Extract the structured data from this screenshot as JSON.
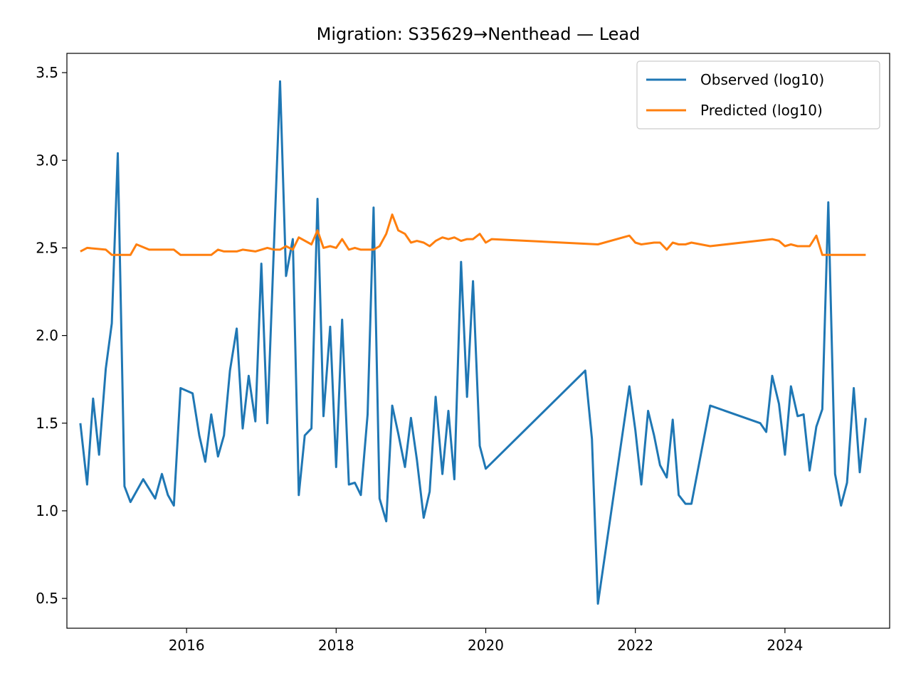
{
  "chart_data": {
    "type": "line",
    "title": "Migration: S35629→Nenthead — Lead",
    "xlabel": "",
    "ylabel": "",
    "xlim": [
      2014.4,
      2025.4
    ],
    "ylim": [
      0.33,
      3.61
    ],
    "x_ticks": [
      2016,
      2018,
      2020,
      2022,
      2024
    ],
    "x_tick_labels": [
      "2016",
      "2018",
      "2020",
      "2022",
      "2024"
    ],
    "y_ticks": [
      0.5,
      1.0,
      1.5,
      2.0,
      2.5,
      3.0,
      3.5
    ],
    "y_tick_labels": [
      "0.5",
      "1.0",
      "1.5",
      "2.0",
      "2.5",
      "3.0",
      "3.5"
    ],
    "grid": false,
    "legend_position": "top-right",
    "series": [
      {
        "name": "Observed (log10)",
        "color": "#1f77b4",
        "points": [
          [
            2014.58,
            1.5
          ],
          [
            2014.67,
            1.15
          ],
          [
            2014.75,
            1.64
          ],
          [
            2014.83,
            1.32
          ],
          [
            2014.92,
            1.81
          ],
          [
            2015.0,
            2.07
          ],
          [
            2015.08,
            3.04
          ],
          [
            2015.17,
            1.14
          ],
          [
            2015.25,
            1.05
          ],
          [
            2015.42,
            1.18
          ],
          [
            2015.58,
            1.07
          ],
          [
            2015.67,
            1.21
          ],
          [
            2015.75,
            1.09
          ],
          [
            2015.83,
            1.03
          ],
          [
            2015.92,
            1.7
          ],
          [
            2016.08,
            1.67
          ],
          [
            2016.17,
            1.43
          ],
          [
            2016.25,
            1.28
          ],
          [
            2016.33,
            1.55
          ],
          [
            2016.42,
            1.31
          ],
          [
            2016.5,
            1.43
          ],
          [
            2016.58,
            1.8
          ],
          [
            2016.67,
            2.04
          ],
          [
            2016.75,
            1.47
          ],
          [
            2016.83,
            1.77
          ],
          [
            2016.92,
            1.51
          ],
          [
            2017.0,
            2.41
          ],
          [
            2017.08,
            1.5
          ],
          [
            2017.25,
            3.45
          ],
          [
            2017.33,
            2.34
          ],
          [
            2017.42,
            2.55
          ],
          [
            2017.5,
            1.09
          ],
          [
            2017.58,
            1.43
          ],
          [
            2017.67,
            1.47
          ],
          [
            2017.75,
            2.78
          ],
          [
            2017.83,
            1.54
          ],
          [
            2017.92,
            2.05
          ],
          [
            2018.0,
            1.25
          ],
          [
            2018.08,
            2.09
          ],
          [
            2018.17,
            1.15
          ],
          [
            2018.25,
            1.16
          ],
          [
            2018.33,
            1.09
          ],
          [
            2018.42,
            1.55
          ],
          [
            2018.5,
            2.73
          ],
          [
            2018.58,
            1.07
          ],
          [
            2018.67,
            0.94
          ],
          [
            2018.75,
            1.6
          ],
          [
            2018.83,
            1.44
          ],
          [
            2018.92,
            1.25
          ],
          [
            2019.0,
            1.53
          ],
          [
            2019.08,
            1.29
          ],
          [
            2019.17,
            0.96
          ],
          [
            2019.25,
            1.11
          ],
          [
            2019.33,
            1.65
          ],
          [
            2019.42,
            1.21
          ],
          [
            2019.5,
            1.57
          ],
          [
            2019.58,
            1.18
          ],
          [
            2019.67,
            2.42
          ],
          [
            2019.75,
            1.65
          ],
          [
            2019.83,
            2.31
          ],
          [
            2019.92,
            1.37
          ],
          [
            2020.0,
            1.24
          ],
          [
            2021.33,
            1.8
          ],
          [
            2021.42,
            1.41
          ],
          [
            2021.5,
            0.47
          ],
          [
            2021.92,
            1.71
          ],
          [
            2022.0,
            1.46
          ],
          [
            2022.08,
            1.15
          ],
          [
            2022.17,
            1.57
          ],
          [
            2022.25,
            1.43
          ],
          [
            2022.33,
            1.26
          ],
          [
            2022.42,
            1.19
          ],
          [
            2022.5,
            1.52
          ],
          [
            2022.58,
            1.09
          ],
          [
            2022.67,
            1.04
          ],
          [
            2022.75,
            1.04
          ],
          [
            2023.0,
            1.6
          ],
          [
            2023.67,
            1.5
          ],
          [
            2023.75,
            1.45
          ],
          [
            2023.83,
            1.77
          ],
          [
            2023.92,
            1.61
          ],
          [
            2024.0,
            1.32
          ],
          [
            2024.08,
            1.71
          ],
          [
            2024.17,
            1.54
          ],
          [
            2024.25,
            1.55
          ],
          [
            2024.33,
            1.23
          ],
          [
            2024.42,
            1.48
          ],
          [
            2024.5,
            1.58
          ],
          [
            2024.58,
            2.76
          ],
          [
            2024.67,
            1.21
          ],
          [
            2024.75,
            1.03
          ],
          [
            2024.83,
            1.16
          ],
          [
            2024.92,
            1.7
          ],
          [
            2025.0,
            1.22
          ],
          [
            2025.08,
            1.53
          ]
        ]
      },
      {
        "name": "Predicted (log10)",
        "color": "#ff7f0e",
        "points": [
          [
            2014.58,
            2.48
          ],
          [
            2014.67,
            2.5
          ],
          [
            2014.92,
            2.49
          ],
          [
            2015.0,
            2.46
          ],
          [
            2015.17,
            2.46
          ],
          [
            2015.25,
            2.46
          ],
          [
            2015.33,
            2.52
          ],
          [
            2015.5,
            2.49
          ],
          [
            2015.83,
            2.49
          ],
          [
            2015.92,
            2.46
          ],
          [
            2016.33,
            2.46
          ],
          [
            2016.42,
            2.49
          ],
          [
            2016.5,
            2.48
          ],
          [
            2016.67,
            2.48
          ],
          [
            2016.75,
            2.49
          ],
          [
            2016.92,
            2.48
          ],
          [
            2017.0,
            2.49
          ],
          [
            2017.08,
            2.5
          ],
          [
            2017.17,
            2.49
          ],
          [
            2017.25,
            2.49
          ],
          [
            2017.33,
            2.51
          ],
          [
            2017.42,
            2.49
          ],
          [
            2017.5,
            2.56
          ],
          [
            2017.67,
            2.52
          ],
          [
            2017.75,
            2.6
          ],
          [
            2017.83,
            2.5
          ],
          [
            2017.92,
            2.51
          ],
          [
            2018.0,
            2.5
          ],
          [
            2018.08,
            2.55
          ],
          [
            2018.17,
            2.49
          ],
          [
            2018.25,
            2.5
          ],
          [
            2018.33,
            2.49
          ],
          [
            2018.42,
            2.49
          ],
          [
            2018.5,
            2.49
          ],
          [
            2018.58,
            2.51
          ],
          [
            2018.67,
            2.58
          ],
          [
            2018.75,
            2.69
          ],
          [
            2018.83,
            2.6
          ],
          [
            2018.92,
            2.58
          ],
          [
            2019.0,
            2.53
          ],
          [
            2019.08,
            2.54
          ],
          [
            2019.17,
            2.53
          ],
          [
            2019.25,
            2.51
          ],
          [
            2019.33,
            2.54
          ],
          [
            2019.42,
            2.56
          ],
          [
            2019.5,
            2.55
          ],
          [
            2019.58,
            2.56
          ],
          [
            2019.67,
            2.54
          ],
          [
            2019.75,
            2.55
          ],
          [
            2019.83,
            2.55
          ],
          [
            2019.92,
            2.58
          ],
          [
            2020.0,
            2.53
          ],
          [
            2020.08,
            2.55
          ],
          [
            2021.5,
            2.52
          ],
          [
            2021.92,
            2.57
          ],
          [
            2022.0,
            2.53
          ],
          [
            2022.08,
            2.52
          ],
          [
            2022.25,
            2.53
          ],
          [
            2022.33,
            2.53
          ],
          [
            2022.42,
            2.49
          ],
          [
            2022.5,
            2.53
          ],
          [
            2022.58,
            2.52
          ],
          [
            2022.67,
            2.52
          ],
          [
            2022.75,
            2.53
          ],
          [
            2023.0,
            2.51
          ],
          [
            2023.83,
            2.55
          ],
          [
            2023.92,
            2.54
          ],
          [
            2024.0,
            2.51
          ],
          [
            2024.08,
            2.52
          ],
          [
            2024.17,
            2.51
          ],
          [
            2024.25,
            2.51
          ],
          [
            2024.33,
            2.51
          ],
          [
            2024.42,
            2.57
          ],
          [
            2024.5,
            2.46
          ],
          [
            2025.08,
            2.46
          ]
        ]
      }
    ]
  }
}
